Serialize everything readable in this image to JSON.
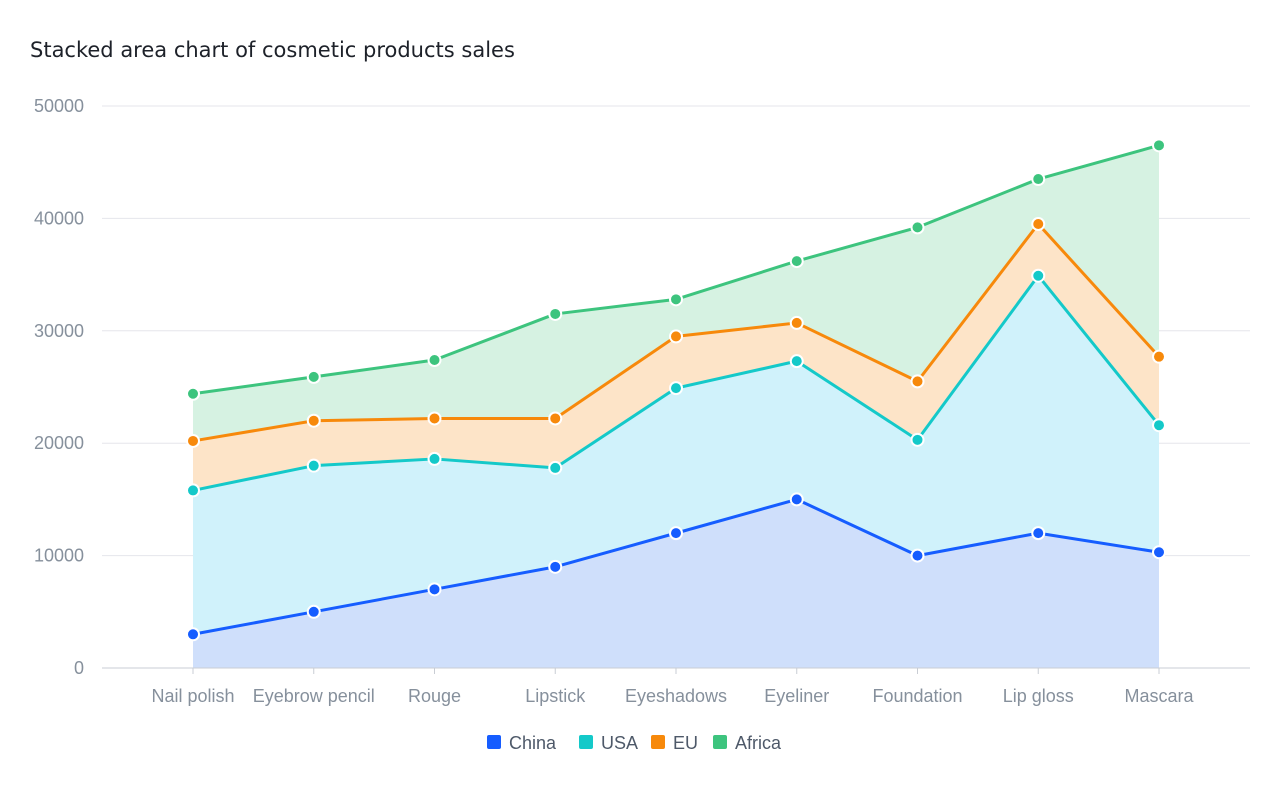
{
  "chart_data": {
    "type": "area",
    "stacked": true,
    "title": "Stacked area chart of cosmetic products sales",
    "xlabel": "",
    "ylabel": "",
    "categories": [
      "Nail polish",
      "Eyebrow pencil",
      "Rouge",
      "Lipstick",
      "Eyeshadows",
      "Eyeliner",
      "Foundation",
      "Lip gloss",
      "Mascara"
    ],
    "ylim": [
      0,
      50000
    ],
    "yticks": [
      0,
      10000,
      20000,
      30000,
      40000,
      50000
    ],
    "grid": true,
    "legend_position": "bottom-center",
    "series": [
      {
        "name": "China",
        "color": "#165dff",
        "fill": "#cfdffb",
        "values": [
          3000,
          5000,
          7000,
          9000,
          12000,
          15000,
          10000,
          12000,
          10300
        ]
      },
      {
        "name": "USA",
        "color": "#14c9c9",
        "fill": "#d0f2fb",
        "values": [
          12800,
          13000,
          11600,
          8800,
          12900,
          12300,
          10300,
          22900,
          11300
        ]
      },
      {
        "name": "EU",
        "color": "#f7890b",
        "fill": "#fde4c8",
        "values": [
          4400,
          4000,
          3600,
          4400,
          4600,
          3400,
          5200,
          4600,
          6100
        ]
      },
      {
        "name": "Africa",
        "color": "#3dc47e",
        "fill": "#d6f2e2",
        "values": [
          4200,
          3900,
          5200,
          9300,
          3300,
          5500,
          13700,
          4000,
          18800
        ]
      }
    ]
  }
}
